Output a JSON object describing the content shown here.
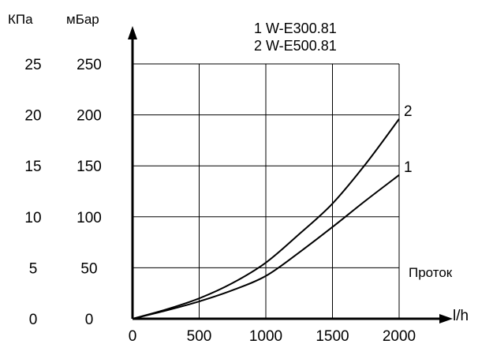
{
  "chart_data": {
    "type": "line",
    "x_unit_label": "l/h",
    "y_unit_left_label": "КПа",
    "y_unit_right_label": "мБар",
    "annotation": "Проток",
    "legend": [
      {
        "id": "1",
        "text": "1 W-E300.81"
      },
      {
        "id": "2",
        "text": "2 W-E500.81"
      }
    ],
    "x_ticks": [
      "0",
      "500",
      "1000",
      "1500",
      "2000"
    ],
    "y_ticks_kpa": [
      "0",
      "5",
      "10",
      "15",
      "20",
      "25"
    ],
    "y_ticks_mbar": [
      "0",
      "50",
      "100",
      "150",
      "200",
      "250"
    ],
    "xlim": [
      0,
      2000
    ],
    "ylim": [
      0,
      250
    ],
    "grid": true,
    "series": [
      {
        "name": "1",
        "x": [
          0,
          250,
          500,
          750,
          1000,
          1250,
          1500,
          1750,
          2000
        ],
        "y": [
          0,
          8,
          17,
          28,
          42,
          65,
          90,
          116,
          141
        ]
      },
      {
        "name": "2",
        "x": [
          0,
          250,
          500,
          750,
          1000,
          1250,
          1500,
          1750,
          2000
        ],
        "y": [
          0,
          9,
          20,
          35,
          55,
          83,
          113,
          152,
          196
        ]
      }
    ]
  }
}
